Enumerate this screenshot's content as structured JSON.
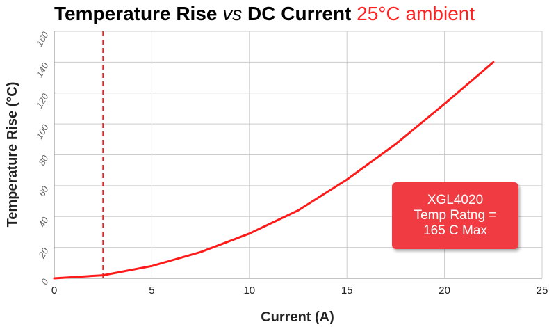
{
  "header": {
    "title_main": "Temperature Rise ",
    "title_vs": "vs",
    "title_main2": " DC Current",
    "title_ambient": "25°C ambient"
  },
  "callout": {
    "line1": "XGL4020",
    "line2": "Temp Ratng =",
    "line3": "165 C Max"
  },
  "colors": {
    "series": "#ff1a1a",
    "callout_bg": "#ef3b41",
    "grid": "#cccccc"
  },
  "chart_data": {
    "type": "line",
    "xlabel": "Current (A)",
    "ylabel": "Temperature Rise (°C)",
    "xlim": [
      0,
      25
    ],
    "ylim": [
      0,
      160
    ],
    "xticks": [
      0,
      5,
      10,
      15,
      20,
      25
    ],
    "yticks": [
      0,
      20,
      40,
      60,
      80,
      100,
      120,
      140,
      160
    ],
    "grid": true,
    "reference_line": {
      "x": 2.5,
      "style": "dashed"
    },
    "series": [
      {
        "x": [
          0,
          2.5,
          5,
          7.5,
          10,
          12.5,
          15,
          17.5,
          20,
          22.5
        ],
        "y": [
          0,
          2,
          8,
          17,
          29,
          44,
          64,
          87,
          113,
          140
        ]
      }
    ]
  }
}
